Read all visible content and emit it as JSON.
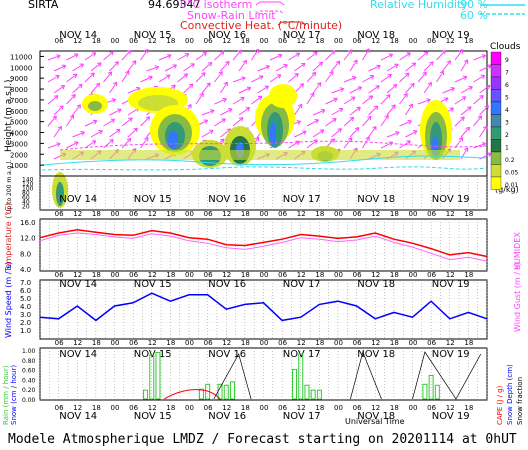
{
  "header": {
    "station": "SIRTA",
    "coords": "94.69347",
    "isotherm": "0°C isotherm",
    "snow_rain_limit": "Snow-Rain Limit",
    "convective_heat": "Convective Heat. (°C/minute)",
    "rh_label": "Relative Humidity",
    "rh_90": "90 %",
    "rh_60": "60 %"
  },
  "footer": "Modele Atmospherique LMDZ / Forecast starting on 20201114 at 0hUT",
  "universal_time": "Universal Time",
  "days": [
    "NOV 14",
    "NOV 15",
    "NOV 16",
    "NOV 17",
    "NOV 18",
    "NOV 19"
  ],
  "hour_labels": [
    "06",
    "12",
    "18",
    "00"
  ],
  "clouds_legend": {
    "title": "Clouds",
    "unit": "(g/kg)",
    "levels": [
      "9",
      "7",
      "6",
      "5",
      "4",
      "3",
      "2",
      "1",
      "0.2",
      "0.05",
      "0.01"
    ],
    "colors": [
      "#ff00ff",
      "#cc33ff",
      "#9933ff",
      "#6655ff",
      "#3377ff",
      "#4488aa",
      "#339977",
      "#227744",
      "#88bb44",
      "#ccdd33",
      "#ffff00"
    ]
  },
  "panel1": {
    "ylabel": "Height (m a.s.l.)",
    "sublabel": "Up to 200 m a.g.l."
  },
  "panel2": {
    "ylabel_left": "Temperature (°C)",
    "ylabel_right": "HUMIDEX"
  },
  "panel3": {
    "ylabel_left": "Wind Speed (m / s)",
    "ylabel_right": "Wind Gust (m / s)"
  },
  "panel4": {
    "ylabel_left_rain": "Rain (mm / hour)",
    "ylabel_left_snow": "Snow (cm / hour)",
    "ylabel_right_cape": "CAPE (J / g)",
    "ylabel_right_snowdepth": "Snow Depth (cm)",
    "ylabel_right_frac": "Snow fraction"
  },
  "chart_data": [
    {
      "type": "heatmap",
      "title": "Clouds / Height",
      "ylabel": "Height (m a.s.l.)",
      "yticks": [
        1000,
        2000,
        3000,
        4000,
        5000,
        6000,
        7000,
        8000,
        9000,
        10000,
        11000
      ],
      "yticks_low": [
        20,
        40,
        60,
        80,
        100,
        120,
        140
      ],
      "ylim": [
        0,
        11500
      ]
    },
    {
      "type": "line",
      "ylabel": "Temperature (°C)",
      "ylim": [
        4,
        16
      ],
      "yticks": [
        4.0,
        8.0,
        12.0,
        16.0
      ],
      "x_hours": [
        0,
        6,
        12,
        18,
        24,
        30,
        36,
        42,
        48,
        54,
        60,
        66,
        72,
        78,
        84,
        90,
        96,
        102,
        108,
        114,
        120,
        126,
        132,
        138,
        144
      ],
      "series": [
        {
          "name": "Temperature",
          "color": "#ff0000",
          "values": [
            12.0,
            13.2,
            14.0,
            13.4,
            12.8,
            12.6,
            13.8,
            13.2,
            12.0,
            11.6,
            10.2,
            10.0,
            10.8,
            11.6,
            12.8,
            12.4,
            11.8,
            12.2,
            13.2,
            11.6,
            10.6,
            9.2,
            7.6,
            8.2,
            7.2
          ]
        },
        {
          "name": "HUMIDEX",
          "color": "#ff66ff",
          "values": [
            11.2,
            12.6,
            13.2,
            12.8,
            12.2,
            11.8,
            13.0,
            12.4,
            11.2,
            10.6,
            9.4,
            9.0,
            9.8,
            10.8,
            12.0,
            11.6,
            11.0,
            11.4,
            12.4,
            10.8,
            9.6,
            8.0,
            6.4,
            7.0,
            6.0
          ]
        }
      ]
    },
    {
      "type": "line",
      "ylabel": "Wind Speed (m / s)",
      "ylim": [
        0,
        7
      ],
      "yticks": [
        1.0,
        2.0,
        3.0,
        4.0,
        5.0,
        6.0,
        7.0
      ],
      "x_hours": [
        0,
        6,
        12,
        18,
        24,
        30,
        36,
        42,
        48,
        54,
        60,
        66,
        72,
        78,
        84,
        90,
        96,
        102,
        108,
        114,
        120,
        126,
        132,
        138,
        144
      ],
      "series": [
        {
          "name": "Wind Speed",
          "color": "#0000ff",
          "values": [
            2.6,
            2.4,
            4.0,
            2.2,
            4.0,
            4.4,
            5.6,
            4.6,
            5.4,
            5.4,
            3.6,
            4.2,
            4.4,
            2.2,
            2.6,
            4.2,
            4.6,
            4.0,
            2.4,
            3.2,
            2.6,
            4.6,
            2.4,
            3.2,
            2.4
          ]
        }
      ]
    },
    {
      "type": "bar",
      "ylabel": "Rain (mm / hour)",
      "ylim": [
        0,
        1.0
      ],
      "yticks": [
        0.0,
        0.2,
        0.4,
        0.6,
        0.8,
        1.0
      ],
      "x_hours": [
        34,
        36,
        38,
        52,
        54,
        58,
        60,
        62,
        82,
        84,
        86,
        88,
        90,
        124,
        126,
        128
      ],
      "values": [
        0.18,
        0.9,
        0.95,
        0.2,
        0.3,
        0.3,
        0.28,
        0.35,
        0.6,
        0.92,
        0.28,
        0.18,
        0.18,
        0.3,
        0.48,
        0.28
      ]
    }
  ]
}
